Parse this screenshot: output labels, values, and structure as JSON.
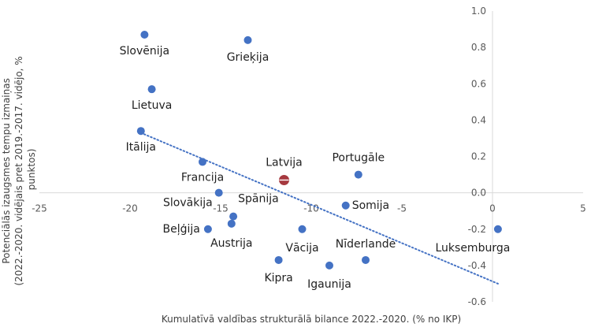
{
  "chart_data": {
    "type": "scatter",
    "xlabel": "Kumulatīvā valdības strukturālā bilance 2022.-2020. (% no IKP)",
    "ylabel_lines": [
      "Potenciālās izaugsmes tempu izmaiņas",
      "(2022.-2020. vidējais pret 2019.-2017. vidējo, %",
      "punktos)"
    ],
    "xlim": [
      -25,
      5
    ],
    "ylim": [
      -0.6,
      1.0
    ],
    "x_ticks": [
      "-25",
      "-20",
      "-15",
      "-10",
      "-5",
      "0",
      "5"
    ],
    "y_ticks": [
      "1.0",
      "0.8",
      "0.6",
      "0.4",
      "0.2",
      "0.0",
      "-0.2",
      "-0.4",
      "-0.6"
    ],
    "grid": false,
    "colors": {
      "point": "#4472C4",
      "highlight": "#A6393F",
      "trend": "#4472C4",
      "axis": "#D9D9D9"
    },
    "points": [
      {
        "label": "Slovēnija",
        "x": -19.2,
        "y": 0.87
      },
      {
        "label": "Grieķija",
        "x": -13.5,
        "y": 0.84
      },
      {
        "label": "Lietuva",
        "x": -18.8,
        "y": 0.57
      },
      {
        "label": "Itālija",
        "x": -19.4,
        "y": 0.34
      },
      {
        "label": "Francija",
        "x": -16.0,
        "y": 0.17
      },
      {
        "label": "Latvija",
        "x": -11.5,
        "y": 0.07,
        "highlight": true
      },
      {
        "label": "Portugāle",
        "x": -7.4,
        "y": 0.1
      },
      {
        "label": "Slovākija",
        "x": -15.1,
        "y": 0.0
      },
      {
        "label": "Somija",
        "x": -8.1,
        "y": -0.07
      },
      {
        "label": "Spānija",
        "x": -14.3,
        "y": -0.13
      },
      {
        "label": "Austrija",
        "x": -14.4,
        "y": -0.17
      },
      {
        "label": "Beļģija",
        "x": -15.7,
        "y": -0.2
      },
      {
        "label": "Vācija",
        "x": -10.5,
        "y": -0.2
      },
      {
        "label": "Nīderlande",
        "x": -7.0,
        "y": -0.37
      },
      {
        "label": "Kipra",
        "x": -11.8,
        "y": -0.37
      },
      {
        "label": "Igaunija",
        "x": -9.0,
        "y": -0.4
      },
      {
        "label": "Luksemburga",
        "x": 0.3,
        "y": -0.2
      }
    ],
    "trendline": {
      "style": "dotted",
      "x": [
        -19.4,
        0.3
      ],
      "y": [
        0.33,
        -0.5
      ]
    }
  }
}
